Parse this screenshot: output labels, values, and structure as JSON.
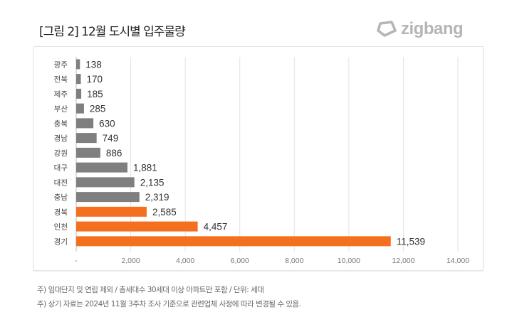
{
  "title": "[그림 2] 12월 도시별 입주물량",
  "logo": {
    "text": "zigbang",
    "icon": "zigbang-logo-icon"
  },
  "notes": [
    "주) 임대단지 및 연립 제외 / 총세대수 30세대 이상 아파트만 포함 / 단위: 세대",
    "주) 상기 자료는 2024년 11월 3주차 조사 기준으로 관련업체 사정에 따라 변경될 수 있음."
  ],
  "chart_data": {
    "type": "bar",
    "orientation": "horizontal",
    "categories": [
      "광주",
      "전북",
      "제주",
      "부산",
      "충북",
      "경남",
      "강원",
      "대구",
      "대전",
      "충남",
      "경북",
      "인천",
      "경기"
    ],
    "values": [
      138,
      170,
      185,
      285,
      630,
      749,
      886,
      1881,
      2135,
      2319,
      2585,
      4457,
      11539
    ],
    "data_labels": [
      "138",
      "170",
      "185",
      "285",
      "630",
      "749",
      "886",
      "1,881",
      "2,135",
      "2,319",
      "2,585",
      "4,457",
      "11,539"
    ],
    "highlight": [
      false,
      false,
      false,
      false,
      false,
      false,
      false,
      false,
      false,
      false,
      true,
      true,
      true
    ],
    "colors": {
      "default": "#7f7f7f",
      "highlight": "#f4701f"
    },
    "xlim": [
      0,
      14000
    ],
    "xticks": [
      "-",
      "2,000",
      "4,000",
      "6,000",
      "8,000",
      "10,000",
      "12,000",
      "14,000"
    ],
    "grid": true,
    "legend": "none"
  }
}
